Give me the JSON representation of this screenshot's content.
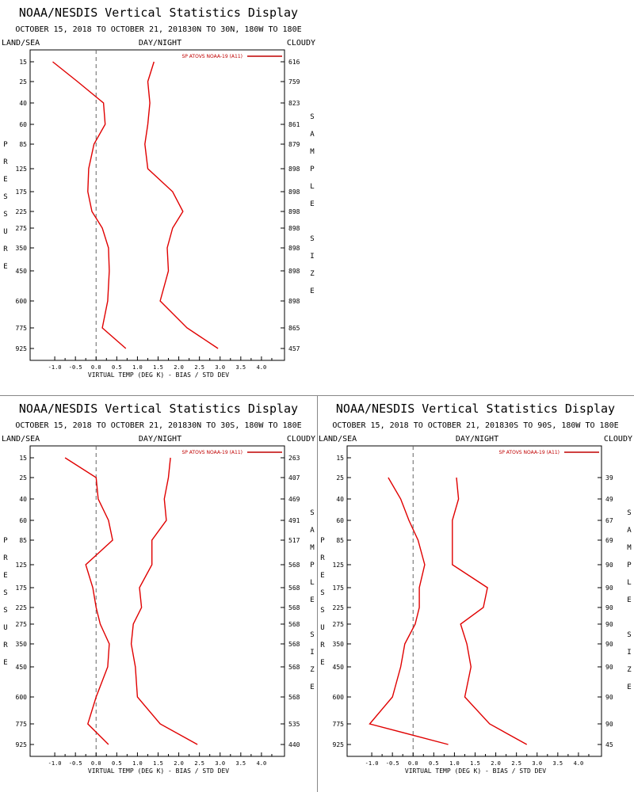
{
  "chart_data": [
    {
      "type": "line",
      "title": "NOAA/NESDIS Vertical Statistics Display",
      "subtitle": "OCTOBER 15, 2018 TO OCTOBER 21, 201830N TO 30N, 180W TO 180E",
      "left_header": "LAND/SEA",
      "center_header": "DAY/NIGHT",
      "right_header": "CLOUDY",
      "xlabel": "VIRTUAL TEMP (DEG K) - BIAS / STD DEV",
      "ylabel": "PRESSURE",
      "right_label": "SAMPLE SIZE",
      "xlim": [
        -1.5,
        4.5
      ],
      "x_ticks": [
        "-1.0",
        "-0.5",
        "0.0",
        "0.5",
        "1.0",
        "1.5",
        "2.0",
        "2.5",
        "3.0",
        "3.5",
        "4.0"
      ],
      "pressure_levels": [
        "15",
        "25",
        "40",
        "60",
        "85",
        "125",
        "175",
        "225",
        "275",
        "350",
        "450",
        "600",
        "775",
        "925"
      ],
      "sample_size": [
        "616",
        "759",
        "823",
        "861",
        "879",
        "898",
        "898",
        "898",
        "898",
        "898",
        "898",
        "898",
        "865",
        "457"
      ],
      "legend": "SP ATOVS NOAA-19 (A11)",
      "legend_position": "top-right",
      "grid": false,
      "series": [
        {
          "name": "bias",
          "values": [
            -1.05,
            -0.45,
            0.18,
            0.22,
            -0.05,
            -0.18,
            -0.2,
            -0.1,
            0.15,
            0.3,
            0.32,
            0.28,
            0.15,
            0.72
          ]
        },
        {
          "name": "std dev",
          "values": [
            1.4,
            1.25,
            1.3,
            1.25,
            1.18,
            1.25,
            1.85,
            2.1,
            1.85,
            1.72,
            1.75,
            1.55,
            2.2,
            2.95
          ]
        }
      ]
    },
    {
      "type": "line",
      "title": "NOAA/NESDIS Vertical Statistics Display",
      "subtitle": "OCTOBER 15, 2018 TO OCTOBER 21, 201830N TO 30S, 180W TO 180E",
      "left_header": "LAND/SEA",
      "center_header": "DAY/NIGHT",
      "right_header": "CLOUDY",
      "xlabel": "VIRTUAL TEMP (DEG K) - BIAS / STD DEV",
      "ylabel": "PRESSURE",
      "right_label": "SAMPLE SIZE",
      "xlim": [
        -1.5,
        4.5
      ],
      "x_ticks": [
        "-1.0",
        "-0.5",
        "0.0",
        "0.5",
        "1.0",
        "1.5",
        "2.0",
        "2.5",
        "3.0",
        "3.5",
        "4.0"
      ],
      "pressure_levels": [
        "15",
        "25",
        "40",
        "60",
        "85",
        "125",
        "175",
        "225",
        "275",
        "350",
        "450",
        "600",
        "775",
        "925"
      ],
      "sample_size": [
        "263",
        "407",
        "469",
        "491",
        "517",
        "568",
        "568",
        "568",
        "568",
        "568",
        "568",
        "568",
        "535",
        "440"
      ],
      "legend": "SP ATOVS NOAA-19 (A11)",
      "legend_position": "top-right",
      "grid": false,
      "series": [
        {
          "name": "bias",
          "values": [
            -0.75,
            0.0,
            0.05,
            0.3,
            0.4,
            -0.25,
            -0.08,
            0.0,
            0.1,
            0.32,
            0.28,
            0.0,
            -0.2,
            0.3
          ]
        },
        {
          "name": "std dev",
          "values": [
            1.8,
            1.75,
            1.65,
            1.7,
            1.35,
            1.35,
            1.05,
            1.1,
            0.9,
            0.85,
            0.95,
            1.0,
            1.55,
            2.45
          ]
        }
      ]
    },
    {
      "type": "line",
      "title": "NOAA/NESDIS Vertical Statistics Display",
      "subtitle": "OCTOBER 15, 2018 TO OCTOBER 21, 201830S TO 90S, 180W TO 180E",
      "left_header": "LAND/SEA",
      "center_header": "DAY/NIGHT",
      "right_header": "CLOUDY",
      "xlabel": "VIRTUAL TEMP (DEG K) - BIAS / STD DEV",
      "ylabel": "PRESSURE",
      "right_label": "SAMPLE SIZE",
      "xlim": [
        -1.5,
        4.5
      ],
      "x_ticks": [
        "-1.0",
        "-0.5",
        "0.0",
        "0.5",
        "1.0",
        "1.5",
        "2.0",
        "2.5",
        "3.0",
        "3.5",
        "4.0"
      ],
      "pressure_levels": [
        "15",
        "25",
        "40",
        "60",
        "85",
        "125",
        "175",
        "225",
        "275",
        "350",
        "450",
        "600",
        "775",
        "925"
      ],
      "sample_size": [
        "",
        "39",
        "49",
        "67",
        "69",
        "90",
        "90",
        "90",
        "90",
        "90",
        "90",
        "90",
        "90",
        "45"
      ],
      "legend": "SP ATOVS NOAA-19 (A11)",
      "legend_position": "top-right",
      "grid": false,
      "series": [
        {
          "name": "bias",
          "values": [
            null,
            -0.6,
            -0.3,
            -0.1,
            0.12,
            0.28,
            0.15,
            0.15,
            0.05,
            -0.2,
            -0.3,
            -0.5,
            -1.05,
            0.85
          ]
        },
        {
          "name": "std dev",
          "values": [
            null,
            1.05,
            1.1,
            0.95,
            0.95,
            0.95,
            1.8,
            1.7,
            1.15,
            1.3,
            1.4,
            1.25,
            1.85,
            2.75
          ]
        }
      ]
    }
  ]
}
